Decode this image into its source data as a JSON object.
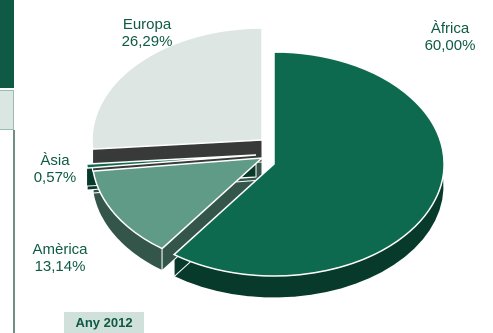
{
  "chart_data": {
    "type": "pie",
    "style": "3d-exploded",
    "slices": [
      {
        "label": "Àfrica",
        "value": 60.0,
        "value_text": "60,00%",
        "color": "#0e6a4e"
      },
      {
        "label": "Amèrica",
        "value": 13.14,
        "value_text": "13,14%",
        "color": "#5f9b86"
      },
      {
        "label": "Àsia",
        "value": 0.57,
        "value_text": "0,57%",
        "color": "#0e6a4e"
      },
      {
        "label": "Europa",
        "value": 26.29,
        "value_text": "26,29%",
        "color": "#dde6e2"
      }
    ]
  },
  "footer": {
    "year_label": "Any 2012"
  }
}
